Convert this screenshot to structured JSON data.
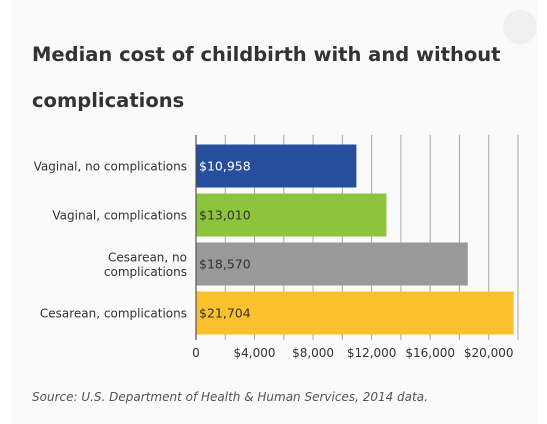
{
  "chart_data": {
    "type": "bar",
    "orientation": "horizontal",
    "title": "Median cost of childbirth with and without complications",
    "categories": [
      "Vaginal, no complications",
      "Vaginal, complications",
      "Cesarean, no complications",
      "Cesarean, complications"
    ],
    "category_lines": [
      [
        "Vaginal, no complications"
      ],
      [
        "Vaginal, complications"
      ],
      [
        "Cesarean, no",
        "complications"
      ],
      [
        "Cesarean, complications"
      ]
    ],
    "values": [
      10958,
      13010,
      18570,
      21704
    ],
    "value_labels": [
      "$10,958",
      "$13,010",
      "$18,570",
      "$21,704"
    ],
    "bar_colors": [
      "#274e9c",
      "#8cc43c",
      "#999999",
      "#fbc12c"
    ],
    "value_label_colors": [
      "#ffffff",
      "#333333",
      "#333333",
      "#333333"
    ],
    "x_ticks": [
      0,
      4000,
      8000,
      12000,
      16000,
      20000
    ],
    "x_tick_labels": [
      "0",
      "$4,000",
      "$8,000",
      "$12,000",
      "$16,000",
      "$20,000"
    ],
    "xlim": [
      0,
      22000
    ],
    "grid": true,
    "source": "Source: U.S. Department of Health & Human Services, 2014 data."
  }
}
